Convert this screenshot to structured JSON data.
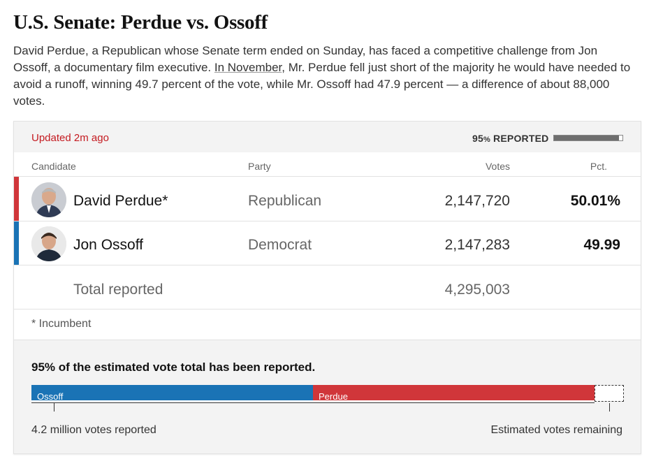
{
  "article": {
    "headline": "U.S. Senate: Perdue vs. Ossoff",
    "intro_before": "David Perdue, a Republican whose Senate term ended on Sunday, has faced a competitive challenge from Jon Ossoff, a documentary film executive. ",
    "intro_link": "In November",
    "intro_after": ", Mr. Perdue fell just short of the majority he would have needed to avoid a runoff, winning 49.7 percent of the vote, while Mr. Ossoff had 47.9 percent — a difference of about 88,000 votes."
  },
  "results": {
    "updated": "Updated 2m ago",
    "reported_num": "95",
    "reported_pct_sym": "%",
    "reported_word": " REPORTED",
    "reported_fraction": 0.95,
    "columns": {
      "candidate": "Candidate",
      "party": "Party",
      "votes": "Votes",
      "pct": "Pct."
    },
    "candidates": [
      {
        "name": "David Perdue*",
        "party": "Republican",
        "votes": "2,147,720",
        "pct": "50.01%",
        "color": "#d0363a",
        "avatar": "perdue-avatar"
      },
      {
        "name": "Jon Ossoff",
        "party": "Democrat",
        "votes": "2,147,283",
        "pct": "49.99",
        "color": "#1a73b5",
        "avatar": "ossoff-avatar"
      }
    ],
    "total_label": "Total reported",
    "total_votes": "4,295,003",
    "incumbent_note": "* Incumbent"
  },
  "estimate": {
    "title": "95% of the estimated vote total has been reported.",
    "segments": [
      {
        "label": "Ossoff",
        "share": 0.4749,
        "color": "#1a73b5"
      },
      {
        "label": "Perdue",
        "share": 0.4751,
        "color": "#d0363a"
      }
    ],
    "remaining_share": 0.05,
    "left_caption": "4.2 million votes reported",
    "right_caption": "Estimated votes remaining"
  }
}
